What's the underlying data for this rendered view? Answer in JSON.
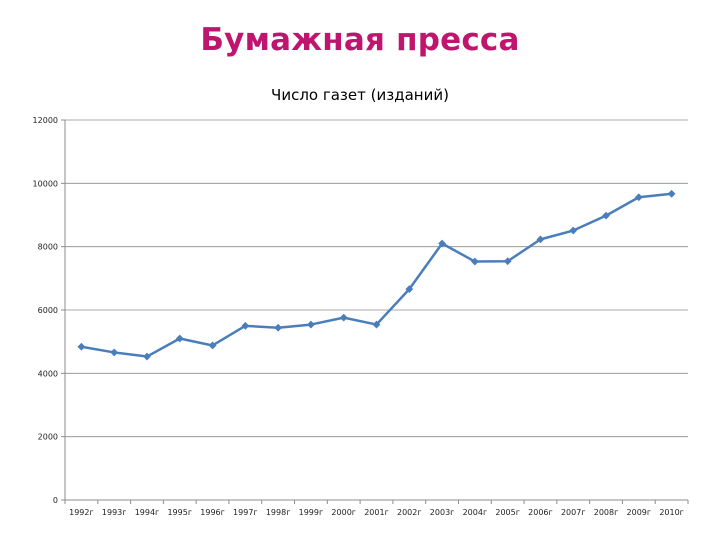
{
  "slide": {
    "title": "Бумажная пресса"
  },
  "chart_data": {
    "type": "line",
    "title": "Число газет (изданий)",
    "xlabel": "",
    "ylabel": "",
    "categories": [
      "1992г",
      "1993г",
      "1994г",
      "1995г",
      "1996г",
      "1997г",
      "1998г",
      "1999г",
      "2000г",
      "2001г",
      "2002г",
      "2003г",
      "2004г",
      "2005г",
      "2006г",
      "2007г",
      "2008г",
      "2009г",
      "2010г"
    ],
    "series": [
      {
        "values": [
          4840,
          4660,
          4530,
          5100,
          4880,
          5500,
          5440,
          5540,
          5760,
          5540,
          6660,
          8100,
          7530,
          7540,
          8230,
          8510,
          8980,
          9560,
          9670
        ]
      }
    ],
    "ylim": [
      0,
      12000
    ],
    "yticks": [
      "0",
      "2000",
      "4000",
      "6000",
      "8000",
      "10000",
      "12000"
    ],
    "grid": true,
    "legend": "none",
    "colors": {
      "line": "#4a7ebb",
      "title": "#c0156e",
      "grid": "#8c8c8c"
    }
  }
}
